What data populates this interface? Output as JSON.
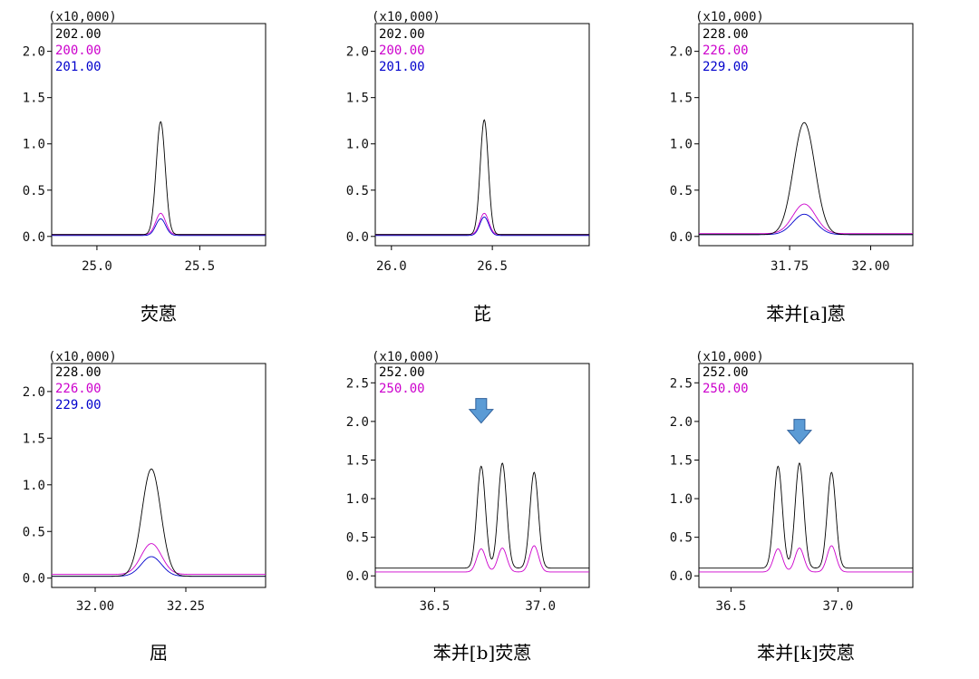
{
  "chart_data": [
    {
      "type": "line",
      "title": "荧蒽",
      "multiplier_label": "(x10,000)",
      "legend": [
        {
          "label": "202.00",
          "color": "#000000"
        },
        {
          "label": "200.00",
          "color": "#cc00cc"
        },
        {
          "label": "201.00",
          "color": "#0000cc"
        }
      ],
      "xlim": [
        24.78,
        25.82
      ],
      "ylim": [
        -0.1,
        2.3
      ],
      "xticks": [
        {
          "value": 25.0,
          "label": "25.0"
        },
        {
          "value": 25.5,
          "label": "25.5"
        }
      ],
      "yticks": [
        {
          "value": 0.0,
          "label": "0.0"
        },
        {
          "value": 0.5,
          "label": "0.5"
        },
        {
          "value": 1.0,
          "label": "1.0"
        },
        {
          "value": 1.5,
          "label": "1.5"
        },
        {
          "value": 2.0,
          "label": "2.0"
        }
      ],
      "series": [
        {
          "color": "#000000",
          "baseline": 0.02,
          "peaks": [
            {
              "center": 25.31,
              "height": 1.22,
              "width": 0.022
            }
          ]
        },
        {
          "color": "#cc00cc",
          "baseline": 0.02,
          "peaks": [
            {
              "center": 25.31,
              "height": 0.23,
              "width": 0.024
            }
          ]
        },
        {
          "color": "#0000cc",
          "baseline": 0.01,
          "peaks": [
            {
              "center": 25.31,
              "height": 0.18,
              "width": 0.024
            }
          ]
        }
      ],
      "annotations": []
    },
    {
      "type": "line",
      "title": "芘",
      "multiplier_label": "(x10,000)",
      "legend": [
        {
          "label": "202.00",
          "color": "#000000"
        },
        {
          "label": "200.00",
          "color": "#cc00cc"
        },
        {
          "label": "201.00",
          "color": "#0000cc"
        }
      ],
      "xlim": [
        25.92,
        26.98
      ],
      "ylim": [
        -0.1,
        2.3
      ],
      "xticks": [
        {
          "value": 26.0,
          "label": "26.0"
        },
        {
          "value": 26.5,
          "label": "26.5"
        }
      ],
      "yticks": [
        {
          "value": 0.0,
          "label": "0.0"
        },
        {
          "value": 0.5,
          "label": "0.5"
        },
        {
          "value": 1.0,
          "label": "1.0"
        },
        {
          "value": 1.5,
          "label": "1.5"
        },
        {
          "value": 2.0,
          "label": "2.0"
        }
      ],
      "series": [
        {
          "color": "#000000",
          "baseline": 0.02,
          "peaks": [
            {
              "center": 26.46,
              "height": 1.24,
              "width": 0.02
            }
          ]
        },
        {
          "color": "#cc00cc",
          "baseline": 0.02,
          "peaks": [
            {
              "center": 26.46,
              "height": 0.23,
              "width": 0.022
            }
          ]
        },
        {
          "color": "#0000cc",
          "baseline": 0.01,
          "peaks": [
            {
              "center": 26.46,
              "height": 0.2,
              "width": 0.022
            }
          ]
        }
      ],
      "annotations": []
    },
    {
      "type": "line",
      "title": "苯并[a]蒽",
      "multiplier_label": "(x10,000)",
      "legend": [
        {
          "label": "228.00",
          "color": "#000000"
        },
        {
          "label": "226.00",
          "color": "#cc00cc"
        },
        {
          "label": "229.00",
          "color": "#0000cc"
        }
      ],
      "xlim": [
        31.47,
        32.13
      ],
      "ylim": [
        -0.1,
        2.3
      ],
      "xticks": [
        {
          "value": 31.75,
          "label": "31.75"
        },
        {
          "value": 32.0,
          "label": "32.00"
        }
      ],
      "yticks": [
        {
          "value": 0.0,
          "label": "0.0"
        },
        {
          "value": 0.5,
          "label": "0.5"
        },
        {
          "value": 1.0,
          "label": "1.0"
        },
        {
          "value": 1.5,
          "label": "1.5"
        },
        {
          "value": 2.0,
          "label": "2.0"
        }
      ],
      "series": [
        {
          "color": "#000000",
          "baseline": 0.02,
          "peaks": [
            {
              "center": 31.795,
              "height": 1.21,
              "width": 0.033
            }
          ]
        },
        {
          "color": "#cc00cc",
          "baseline": 0.03,
          "peaks": [
            {
              "center": 31.795,
              "height": 0.32,
              "width": 0.035
            }
          ]
        },
        {
          "color": "#0000cc",
          "baseline": 0.02,
          "peaks": [
            {
              "center": 31.795,
              "height": 0.22,
              "width": 0.035
            }
          ]
        }
      ],
      "annotations": []
    },
    {
      "type": "line",
      "title": "屈",
      "multiplier_label": "(x10,000)",
      "legend": [
        {
          "label": "228.00",
          "color": "#000000"
        },
        {
          "label": "226.00",
          "color": "#cc00cc"
        },
        {
          "label": "229.00",
          "color": "#0000cc"
        }
      ],
      "xlim": [
        31.88,
        32.47
      ],
      "ylim": [
        -0.1,
        2.3
      ],
      "xticks": [
        {
          "value": 32.0,
          "label": "32.00"
        },
        {
          "value": 32.25,
          "label": "32.25"
        }
      ],
      "yticks": [
        {
          "value": 0.0,
          "label": "0.0"
        },
        {
          "value": 0.5,
          "label": "0.5"
        },
        {
          "value": 1.0,
          "label": "1.0"
        },
        {
          "value": 1.5,
          "label": "1.5"
        },
        {
          "value": 2.0,
          "label": "2.0"
        }
      ],
      "series": [
        {
          "color": "#000000",
          "baseline": 0.02,
          "peaks": [
            {
              "center": 32.155,
              "height": 1.15,
              "width": 0.026
            }
          ]
        },
        {
          "color": "#cc00cc",
          "baseline": 0.04,
          "peaks": [
            {
              "center": 32.155,
              "height": 0.33,
              "width": 0.028
            }
          ]
        },
        {
          "color": "#0000cc",
          "baseline": 0.02,
          "peaks": [
            {
              "center": 32.155,
              "height": 0.21,
              "width": 0.028
            }
          ]
        }
      ],
      "annotations": []
    },
    {
      "type": "line",
      "title": "苯并[b]荧蒽",
      "multiplier_label": "(x10,000)",
      "legend": [
        {
          "label": "252.00",
          "color": "#000000"
        },
        {
          "label": "250.00",
          "color": "#cc00cc"
        }
      ],
      "xlim": [
        36.22,
        37.23
      ],
      "ylim": [
        -0.15,
        2.75
      ],
      "xticks": [
        {
          "value": 36.5,
          "label": "36.5"
        },
        {
          "value": 37.0,
          "label": "37.0"
        }
      ],
      "yticks": [
        {
          "value": 0.0,
          "label": "0.0"
        },
        {
          "value": 0.5,
          "label": "0.5"
        },
        {
          "value": 1.0,
          "label": "1.0"
        },
        {
          "value": 1.5,
          "label": "1.5"
        },
        {
          "value": 2.0,
          "label": "2.0"
        },
        {
          "value": 2.5,
          "label": "2.5"
        }
      ],
      "series": [
        {
          "color": "#000000",
          "baseline": 0.1,
          "peaks": [
            {
              "center": 36.72,
              "height": 1.32,
              "width": 0.02
            },
            {
              "center": 36.82,
              "height": 1.36,
              "width": 0.02
            },
            {
              "center": 36.97,
              "height": 1.24,
              "width": 0.02
            }
          ]
        },
        {
          "color": "#cc00cc",
          "baseline": 0.05,
          "peaks": [
            {
              "center": 36.72,
              "height": 0.3,
              "width": 0.021
            },
            {
              "center": 36.82,
              "height": 0.31,
              "width": 0.021
            },
            {
              "center": 36.97,
              "height": 0.34,
              "width": 0.021
            }
          ]
        }
      ],
      "annotations": [
        {
          "type": "down-arrow",
          "x": 36.72,
          "y": 2.12,
          "color": "#5b9bd5"
        }
      ]
    },
    {
      "type": "line",
      "title": "苯并[k]荧蒽",
      "multiplier_label": "(x10,000)",
      "legend": [
        {
          "label": "252.00",
          "color": "#000000"
        },
        {
          "label": "250.00",
          "color": "#cc00cc"
        }
      ],
      "xlim": [
        36.35,
        37.35
      ],
      "ylim": [
        -0.15,
        2.75
      ],
      "xticks": [
        {
          "value": 36.5,
          "label": "36.5"
        },
        {
          "value": 37.0,
          "label": "37.0"
        }
      ],
      "yticks": [
        {
          "value": 0.0,
          "label": "0.0"
        },
        {
          "value": 0.5,
          "label": "0.5"
        },
        {
          "value": 1.0,
          "label": "1.0"
        },
        {
          "value": 1.5,
          "label": "1.5"
        },
        {
          "value": 2.0,
          "label": "2.0"
        },
        {
          "value": 2.5,
          "label": "2.5"
        }
      ],
      "series": [
        {
          "color": "#000000",
          "baseline": 0.1,
          "peaks": [
            {
              "center": 36.72,
              "height": 1.32,
              "width": 0.02
            },
            {
              "center": 36.82,
              "height": 1.36,
              "width": 0.02
            },
            {
              "center": 36.97,
              "height": 1.24,
              "width": 0.02
            }
          ]
        },
        {
          "color": "#cc00cc",
          "baseline": 0.05,
          "peaks": [
            {
              "center": 36.72,
              "height": 0.3,
              "width": 0.021
            },
            {
              "center": 36.82,
              "height": 0.31,
              "width": 0.021
            },
            {
              "center": 36.97,
              "height": 0.34,
              "width": 0.021
            }
          ]
        }
      ],
      "annotations": [
        {
          "type": "down-arrow",
          "x": 36.82,
          "y": 1.85,
          "color": "#5b9bd5"
        }
      ]
    }
  ]
}
